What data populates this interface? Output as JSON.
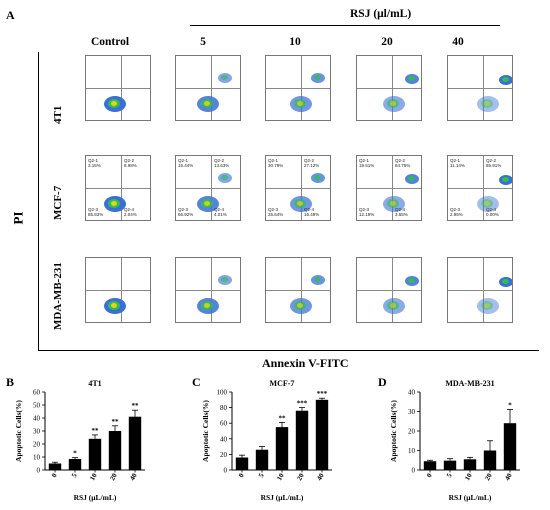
{
  "panel_a": {
    "letter": "A",
    "group_label": "RSJ (μl/mL)",
    "columns": [
      "Control",
      "5",
      "10",
      "20",
      "40"
    ],
    "rows": [
      "4T1",
      "MCF-7",
      "MDA-MB-231"
    ],
    "y_axis_label": "PI",
    "x_axis_label": "Annexin V-FITC",
    "mcf7_quadrants": [
      {
        "q1": "3.15%",
        "q2": "8.98%",
        "q3": "85.83%",
        "q4": "2.04%"
      },
      {
        "q1": "15.44%",
        "q2": "13.63%",
        "q3": "66.92%",
        "q4": "4.01%"
      },
      {
        "q1": "30.79%",
        "q2": "27.12%",
        "q3": "25.64%",
        "q4": "16.49%"
      },
      {
        "q1": "19.51%",
        "q2": "64.75%",
        "q3": "12.19%",
        "q4": "3.55%"
      },
      {
        "q1": "11.14%",
        "q2": "85.91%",
        "q3": "2.95%",
        "q4": "0.00%"
      }
    ]
  },
  "chart_data": [
    {
      "letter": "B",
      "type": "bar",
      "title": "4T1",
      "categories": [
        "0",
        "5",
        "10",
        "20",
        "40"
      ],
      "values": [
        5,
        8.5,
        24,
        30,
        41
      ],
      "errors": [
        1,
        1,
        3,
        4,
        5
      ],
      "significance": [
        "",
        "*",
        "**",
        "**",
        "**"
      ],
      "ylabel": "Apoptotic Cells(%)",
      "xlabel": "RSJ (μL/mL)",
      "ylim": [
        0,
        60
      ],
      "yticks": [
        0,
        10,
        20,
        30,
        40,
        50,
        60
      ]
    },
    {
      "letter": "C",
      "type": "bar",
      "title": "MCF-7",
      "categories": [
        "0",
        "5",
        "10",
        "20",
        "40"
      ],
      "values": [
        16,
        26,
        55,
        76,
        90
      ],
      "errors": [
        3,
        4,
        6,
        4,
        2
      ],
      "significance": [
        "",
        "",
        "**",
        "***",
        "***"
      ],
      "ylabel": "Apoptotic Cells(%)",
      "xlabel": "RSJ (μL/mL)",
      "ylim": [
        0,
        100
      ],
      "yticks": [
        0,
        20,
        40,
        60,
        80,
        100
      ]
    },
    {
      "letter": "D",
      "type": "bar",
      "title": "MDA-MB-231",
      "categories": [
        "0",
        "5",
        "10",
        "20",
        "40"
      ],
      "values": [
        4.5,
        4.8,
        5.5,
        10,
        24
      ],
      "errors": [
        0.5,
        1,
        1,
        5,
        7
      ],
      "significance": [
        "",
        "",
        "",
        "",
        "*"
      ],
      "ylabel": "Apoptotic Cells(%)",
      "xlabel": "RSJ (μL/mL)",
      "ylim": [
        0,
        40
      ],
      "yticks": [
        0,
        10,
        20,
        30,
        40
      ]
    }
  ]
}
